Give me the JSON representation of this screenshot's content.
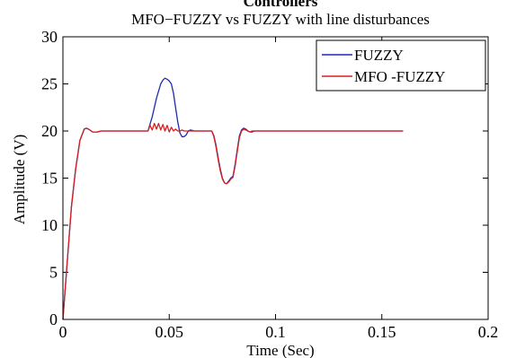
{
  "chart_data": {
    "type": "line",
    "clipped_title": "Controllers",
    "title": "MFO−FUZZY vs FUZZY with line disturbances",
    "xlabel": "Time (Sec)",
    "ylabel": "Amplitude (V)",
    "xlim": [
      0,
      0.2
    ],
    "ylim": [
      0,
      30
    ],
    "xticks": [
      0,
      0.05,
      0.1,
      0.15,
      0.2
    ],
    "xtick_labels": [
      "0",
      "0.05",
      "0.1",
      "0.15",
      "0.2"
    ],
    "yticks": [
      0,
      5,
      10,
      15,
      20,
      25,
      30
    ],
    "ytick_labels": [
      "0",
      "5",
      "10",
      "15",
      "20",
      "25",
      "30"
    ],
    "grid": false,
    "legend_position": "top-right",
    "series": [
      {
        "name": "FUZZY",
        "color": "#1f2ab0",
        "x": [
          0,
          0.002,
          0.004,
          0.006,
          0.008,
          0.01,
          0.011,
          0.012,
          0.014,
          0.016,
          0.018,
          0.02,
          0.025,
          0.03,
          0.035,
          0.04,
          0.042,
          0.044,
          0.046,
          0.047,
          0.048,
          0.049,
          0.05,
          0.051,
          0.052,
          0.053,
          0.054,
          0.055,
          0.056,
          0.057,
          0.058,
          0.059,
          0.06,
          0.062,
          0.065,
          0.07,
          0.071,
          0.072,
          0.073,
          0.074,
          0.075,
          0.076,
          0.077,
          0.078,
          0.079,
          0.08,
          0.081,
          0.082,
          0.083,
          0.084,
          0.085,
          0.086,
          0.087,
          0.088,
          0.089,
          0.09,
          0.091,
          0.092,
          0.093,
          0.094,
          0.095,
          0.1,
          0.12,
          0.14,
          0.16
        ],
        "y": [
          0,
          6,
          12,
          16,
          19,
          20.2,
          20.3,
          20.2,
          19.9,
          19.9,
          20.0,
          20.0,
          20.0,
          20.0,
          20.0,
          20.0,
          21.5,
          23.5,
          25.0,
          25.4,
          25.6,
          25.5,
          25.3,
          25.0,
          24.0,
          22.5,
          21.0,
          19.8,
          19.4,
          19.4,
          19.6,
          20.0,
          20.1,
          20.0,
          20.0,
          20.0,
          19.5,
          18.5,
          17.2,
          16.0,
          15.0,
          14.5,
          14.4,
          14.7,
          15.0,
          15.2,
          16.5,
          18.0,
          19.5,
          20.1,
          20.3,
          20.2,
          20.0,
          19.9,
          19.9,
          20.0,
          20.0,
          20.0,
          20.0,
          20.0,
          20.0,
          20.0,
          20.0,
          20.0,
          20.0
        ]
      },
      {
        "name": "MFO -FUZZY",
        "color": "#d62020",
        "x": [
          0,
          0.002,
          0.004,
          0.006,
          0.008,
          0.01,
          0.011,
          0.012,
          0.014,
          0.016,
          0.018,
          0.02,
          0.025,
          0.03,
          0.035,
          0.04,
          0.041,
          0.042,
          0.043,
          0.044,
          0.045,
          0.046,
          0.047,
          0.048,
          0.049,
          0.05,
          0.051,
          0.052,
          0.053,
          0.054,
          0.055,
          0.056,
          0.057,
          0.058,
          0.059,
          0.06,
          0.062,
          0.065,
          0.07,
          0.071,
          0.072,
          0.073,
          0.074,
          0.075,
          0.076,
          0.077,
          0.078,
          0.079,
          0.08,
          0.081,
          0.082,
          0.083,
          0.084,
          0.085,
          0.086,
          0.087,
          0.088,
          0.089,
          0.09,
          0.092,
          0.095,
          0.1,
          0.12,
          0.14,
          0.16
        ],
        "y": [
          0,
          6,
          12,
          16,
          19,
          20.2,
          20.3,
          20.2,
          19.9,
          19.9,
          20.0,
          20.0,
          20.0,
          20.0,
          20.0,
          20.0,
          20.6,
          20.1,
          20.8,
          20.2,
          20.8,
          20.1,
          20.7,
          20.0,
          20.6,
          19.9,
          20.4,
          20.0,
          20.2,
          20.0,
          20.0,
          20.1,
          20.0,
          20.0,
          20.0,
          20.0,
          20.0,
          20.0,
          20.0,
          19.4,
          18.3,
          17.0,
          15.8,
          14.9,
          14.5,
          14.4,
          14.6,
          14.9,
          15.1,
          16.3,
          17.8,
          19.3,
          20.0,
          20.2,
          20.1,
          20.0,
          19.9,
          20.0,
          20.0,
          20.0,
          20.0,
          20.0,
          20.0,
          20.0,
          20.0
        ]
      }
    ]
  }
}
